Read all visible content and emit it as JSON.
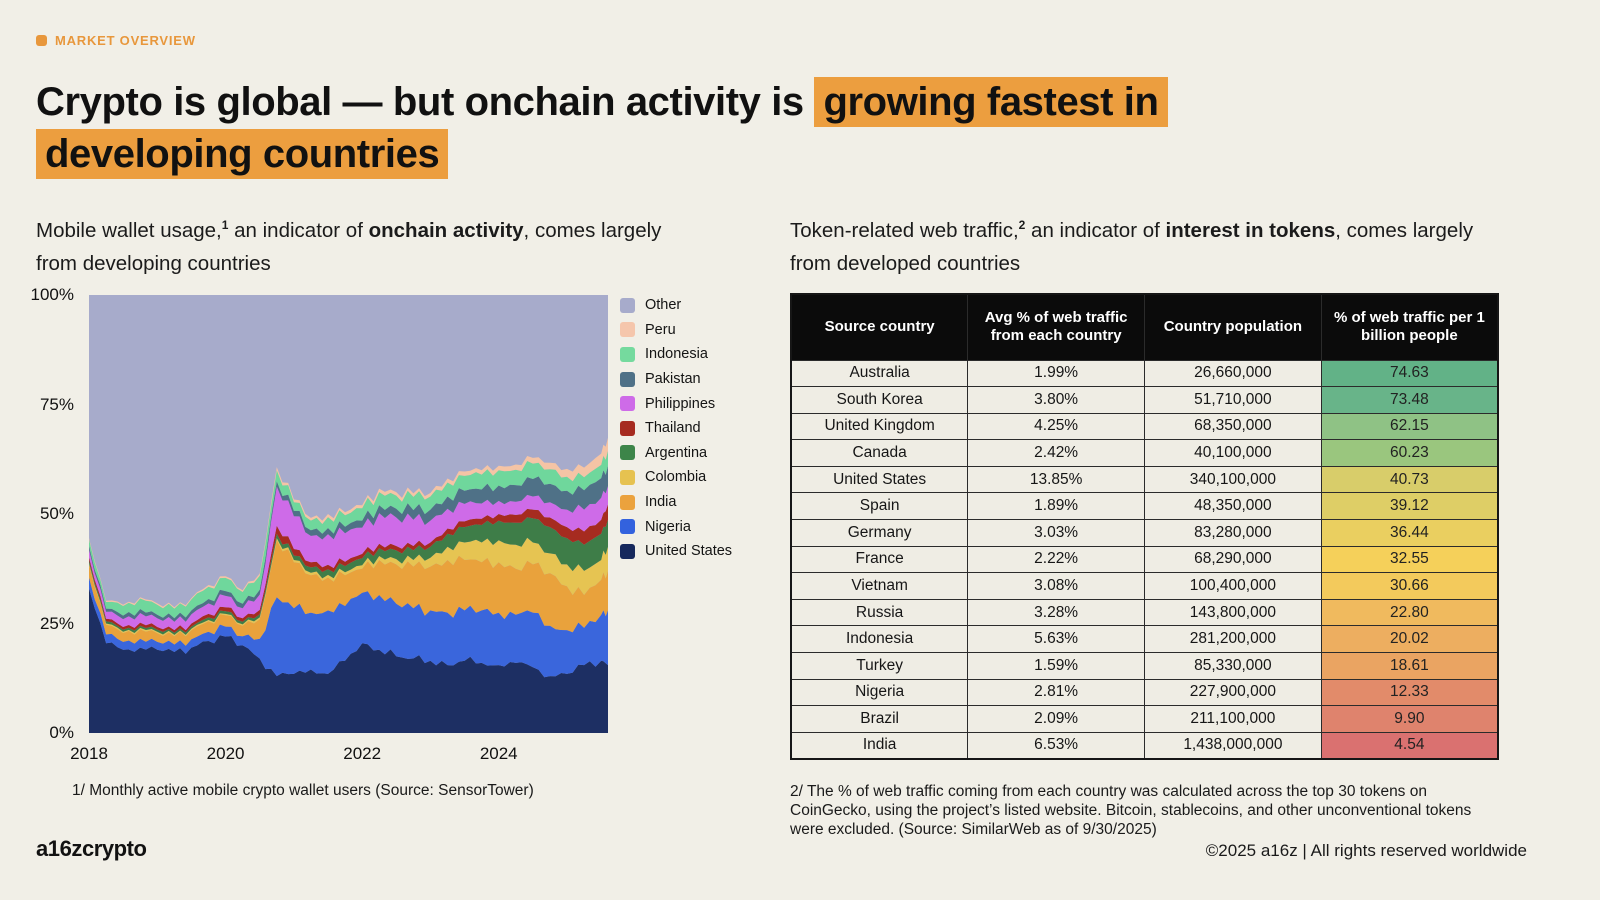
{
  "eyebrow": {
    "label": "MARKET OVERVIEW",
    "accent_color": "#E8973C"
  },
  "title": {
    "pre": "Crypto is global — but onchain activity is ",
    "highlight_1": "growing fastest in",
    "highlight_2": "developing countries",
    "highlight_color": "#EC9E3F"
  },
  "left_panel": {
    "subtitle": {
      "part1": "Mobile wallet usage,",
      "sup": "1",
      "part2": " an indicator of ",
      "bold": "onchain activity",
      "part3": ", comes largely from developing countries"
    },
    "footnote": "1/ Monthly active mobile crypto wallet users (Source: SensorTower)"
  },
  "right_panel": {
    "subtitle": {
      "part1": "Token-related web traffic,",
      "sup": "2",
      "part2": " an indicator of ",
      "bold": "interest in tokens",
      "part3": ", comes largely from developed countries"
    },
    "footnote": "2/ The % of web traffic coming from each country was calculated across the top 30 tokens on CoinGecko, using the project’s listed website. Bitcoin, stablecoins, and other unconventional tokens were excluded. (Source: SimilarWeb as of 9/30/2025)"
  },
  "chart_data": {
    "type": "area",
    "stacked": true,
    "unit": "% of monthly active mobile crypto wallet users",
    "xrange": [
      2018,
      2025.6
    ],
    "yrange": [
      0,
      100
    ],
    "grid": false,
    "legend_position": "right",
    "other_name": "Other",
    "other_color": "#A7ABCB",
    "yticks": [
      {
        "label": "100%",
        "value": 100
      },
      {
        "label": "75%",
        "value": 75
      },
      {
        "label": "50%",
        "value": 50
      },
      {
        "label": "25%",
        "value": 25
      },
      {
        "label": "0%",
        "value": 0
      }
    ],
    "xticks": [
      {
        "label": "2018",
        "value": 2018
      },
      {
        "label": "2020",
        "value": 2020
      },
      {
        "label": "2022",
        "value": 2022
      },
      {
        "label": "2024",
        "value": 2024
      }
    ],
    "legend": [
      {
        "label": "Other",
        "color": "#A7ABCB"
      },
      {
        "label": "Peru",
        "color": "#F5C6AC"
      },
      {
        "label": "Indonesia",
        "color": "#75DA9E"
      },
      {
        "label": "Pakistan",
        "color": "#4F7187"
      },
      {
        "label": "Philippines",
        "color": "#CE6BE8"
      },
      {
        "label": "Thailand",
        "color": "#A62B20"
      },
      {
        "label": "Argentina",
        "color": "#3D8549"
      },
      {
        "label": "Colombia",
        "color": "#E6C250"
      },
      {
        "label": "India",
        "color": "#EBA23D"
      },
      {
        "label": "Nigeria",
        "color": "#3362DE"
      },
      {
        "label": "United States",
        "color": "#16285C"
      }
    ],
    "x": [
      2018.0,
      2018.25,
      2018.5,
      2018.75,
      2019.0,
      2019.25,
      2019.5,
      2019.75,
      2020.0,
      2020.25,
      2020.5,
      2020.75,
      2021.0,
      2021.25,
      2021.5,
      2021.75,
      2022.0,
      2022.25,
      2022.5,
      2022.75,
      2023.0,
      2023.25,
      2023.5,
      2023.75,
      2024.0,
      2024.25,
      2024.5,
      2024.75,
      2025.0,
      2025.25,
      2025.5,
      2025.6
    ],
    "series": [
      {
        "name": "United States",
        "color": "#1D2F63",
        "values": [
          33,
          20.5,
          19,
          19.5,
          19,
          18.5,
          19.5,
          21,
          22,
          20,
          17,
          13,
          13.5,
          14.5,
          13.5,
          16.5,
          20.5,
          19,
          17.5,
          17,
          16.5,
          15.5,
          16.5,
          16,
          15.5,
          16,
          15,
          13,
          13.5,
          15.5,
          16.5,
          15.5
        ]
      },
      {
        "name": "Nigeria",
        "color": "#3A66DC",
        "values": [
          2.5,
          2,
          1.8,
          2,
          1.8,
          1.7,
          1.9,
          2.1,
          2.3,
          2.1,
          4.5,
          18,
          15,
          13,
          14.5,
          12.5,
          11.5,
          12.5,
          12,
          11.5,
          11.5,
          12,
          11.5,
          12,
          12,
          11,
          12.5,
          11.5,
          10,
          8.5,
          10.5,
          12.5
        ]
      },
      {
        "name": "India",
        "color": "#E9A23C",
        "values": [
          3,
          2.2,
          2,
          2.2,
          2,
          1.9,
          2.1,
          2.4,
          2.6,
          2.4,
          4.5,
          13,
          10.5,
          8.5,
          7.5,
          7,
          5.5,
          8,
          9,
          9.5,
          10,
          12,
          11.5,
          11,
          11.5,
          10.5,
          11,
          12,
          10,
          7.5,
          8,
          9
        ]
      },
      {
        "name": "Colombia",
        "color": "#E6C452",
        "values": [
          0.3,
          0.3,
          0.3,
          0.3,
          0.3,
          0.3,
          0.3,
          0.3,
          0.3,
          0.3,
          0.4,
          0.5,
          0.5,
          0.6,
          0.6,
          0.7,
          0.8,
          0.9,
          1.2,
          1.5,
          2,
          3,
          4,
          4.5,
          5,
          5.5,
          5,
          4.5,
          5,
          5.5,
          4.5,
          5.5
        ]
      },
      {
        "name": "Argentina",
        "color": "#3E7D48",
        "values": [
          0.6,
          0.5,
          0.5,
          0.5,
          0.5,
          0.5,
          0.5,
          0.6,
          0.6,
          0.6,
          0.7,
          1,
          1,
          1.2,
          1.3,
          1.4,
          1.6,
          1.8,
          2,
          2.2,
          2.5,
          3,
          3.5,
          4,
          4.5,
          5,
          5.5,
          6,
          6,
          6,
          6,
          6.2
        ]
      },
      {
        "name": "Thailand",
        "color": "#A62B20",
        "values": [
          0.7,
          0.6,
          0.6,
          0.7,
          0.6,
          0.6,
          0.7,
          0.8,
          0.9,
          0.8,
          1,
          1.8,
          1.5,
          1.2,
          1,
          1,
          1,
          1,
          1,
          1,
          1,
          1.2,
          1.3,
          1.4,
          1.5,
          1.8,
          2,
          2.2,
          2.5,
          3,
          3.2,
          3.5
        ]
      },
      {
        "name": "Philippines",
        "color": "#CE6BE8",
        "values": [
          1.8,
          1.6,
          1.8,
          2.2,
          2,
          1.9,
          2.1,
          2.4,
          2.6,
          2.3,
          3.5,
          9,
          7.5,
          6,
          7,
          6.5,
          6,
          7,
          6.5,
          6,
          5,
          4.5,
          4,
          3.5,
          3,
          3,
          3,
          3.5,
          4,
          5,
          5,
          4.2
        ]
      },
      {
        "name": "Pakistan",
        "color": "#4F7187",
        "values": [
          0.8,
          0.7,
          0.8,
          0.9,
          0.8,
          0.8,
          0.9,
          1,
          1.1,
          1,
          1.1,
          1.2,
          1.2,
          1.3,
          1.4,
          1.5,
          1.6,
          1.8,
          2,
          2.2,
          2.5,
          2.8,
          3,
          3.2,
          3.5,
          3.8,
          4,
          4.2,
          4.3,
          4.4,
          4.5,
          4.6
        ]
      },
      {
        "name": "Indonesia",
        "color": "#6FD79C",
        "values": [
          1.5,
          1.5,
          2.2,
          2.4,
          2.3,
          2.2,
          2.5,
          2.8,
          3,
          2.7,
          3.2,
          2.5,
          2,
          2.2,
          2.5,
          2.6,
          2.8,
          3,
          3,
          3,
          3,
          3.2,
          3.4,
          3.4,
          3.5,
          3.5,
          3.5,
          3.3,
          3.2,
          3,
          3,
          3.4
        ]
      },
      {
        "name": "Peru",
        "color": "#F5C4A5",
        "values": [
          0.3,
          0.3,
          0.3,
          0.3,
          0.3,
          0.3,
          0.3,
          0.4,
          0.4,
          0.4,
          0.5,
          0.7,
          0.6,
          0.6,
          0.7,
          0.7,
          0.7,
          0.8,
          0.8,
          0.8,
          0.8,
          0.9,
          1,
          1,
          1,
          1.2,
          1.3,
          1.5,
          1.8,
          2.2,
          2.6,
          3
        ]
      }
    ]
  },
  "table": {
    "headers": [
      "Source country",
      "Avg % of web traffic from each country",
      "Country population",
      "% of web traffic per 1 billion people"
    ],
    "rows": [
      {
        "country": "Australia",
        "traffic": "1.99%",
        "population": "26,660,000",
        "score": "74.63",
        "color": "#62B287"
      },
      {
        "country": "South Korea",
        "traffic": "3.80%",
        "population": "51,710,000",
        "score": "73.48",
        "color": "#68B489"
      },
      {
        "country": "United Kingdom",
        "traffic": "4.25%",
        "population": "68,350,000",
        "score": "62.15",
        "color": "#8FC285"
      },
      {
        "country": "Canada",
        "traffic": "2.42%",
        "population": "40,100,000",
        "score": "60.23",
        "color": "#9AC67E"
      },
      {
        "country": "United States",
        "traffic": "13.85%",
        "population": "340,100,000",
        "score": "40.73",
        "color": "#D8CD6A"
      },
      {
        "country": "Spain",
        "traffic": "1.89%",
        "population": "48,350,000",
        "score": "39.12",
        "color": "#DECE66"
      },
      {
        "country": "Germany",
        "traffic": "3.03%",
        "population": "83,280,000",
        "score": "36.44",
        "color": "#EACF60"
      },
      {
        "country": "France",
        "traffic": "2.22%",
        "population": "68,290,000",
        "score": "32.55",
        "color": "#F5D05A"
      },
      {
        "country": "Vietnam",
        "traffic": "3.08%",
        "population": "100,400,000",
        "score": "30.66",
        "color": "#F3CA5C"
      },
      {
        "country": "Russia",
        "traffic": "3.28%",
        "population": "143,800,000",
        "score": "22.80",
        "color": "#F0BA5E"
      },
      {
        "country": "Indonesia",
        "traffic": "5.63%",
        "population": "281,200,000",
        "score": "20.02",
        "color": "#EDAE60"
      },
      {
        "country": "Turkey",
        "traffic": "1.59%",
        "population": "85,330,000",
        "score": "18.61",
        "color": "#EAA462"
      },
      {
        "country": "Nigeria",
        "traffic": "2.81%",
        "population": "227,900,000",
        "score": "12.33",
        "color": "#E28B6A"
      },
      {
        "country": "Brazil",
        "traffic": "2.09%",
        "population": "211,100,000",
        "score": "9.90",
        "color": "#DF836D"
      },
      {
        "country": "India",
        "traffic": "6.53%",
        "population": "1,438,000,000",
        "score": "4.54",
        "color": "#DA7170"
      }
    ]
  },
  "footer": {
    "logo": "a16zcrypto",
    "copyright": "©2025 a16z | All rights reserved worldwide"
  }
}
